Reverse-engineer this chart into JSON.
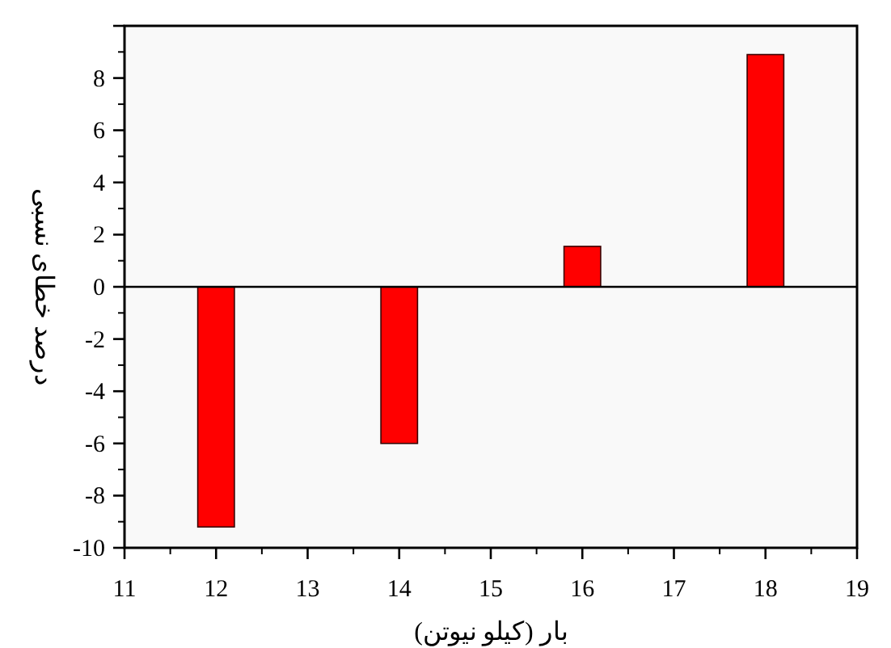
{
  "chart_data": {
    "type": "bar",
    "xlabel": "بار (کیلو نیوتن)",
    "ylabel": "درصد خطای نسبی",
    "x": [
      12,
      14,
      16,
      18
    ],
    "series": [
      {
        "color": "#ff0000",
        "values": [
          -9.2,
          -6.0,
          1.55,
          8.9
        ]
      }
    ],
    "xlim": [
      11,
      19
    ],
    "xticks": [
      11,
      12,
      13,
      14,
      15,
      16,
      17,
      18,
      19
    ],
    "ylim": [
      -10,
      10
    ],
    "yticks": [
      -10,
      -8,
      -6,
      -4,
      -2,
      0,
      2,
      4,
      6,
      8,
      {
        "value": 10,
        "label": null
      }
    ],
    "ref_lines": [
      {
        "axis": "y",
        "value": 0,
        "color": "#000000"
      }
    ]
  }
}
